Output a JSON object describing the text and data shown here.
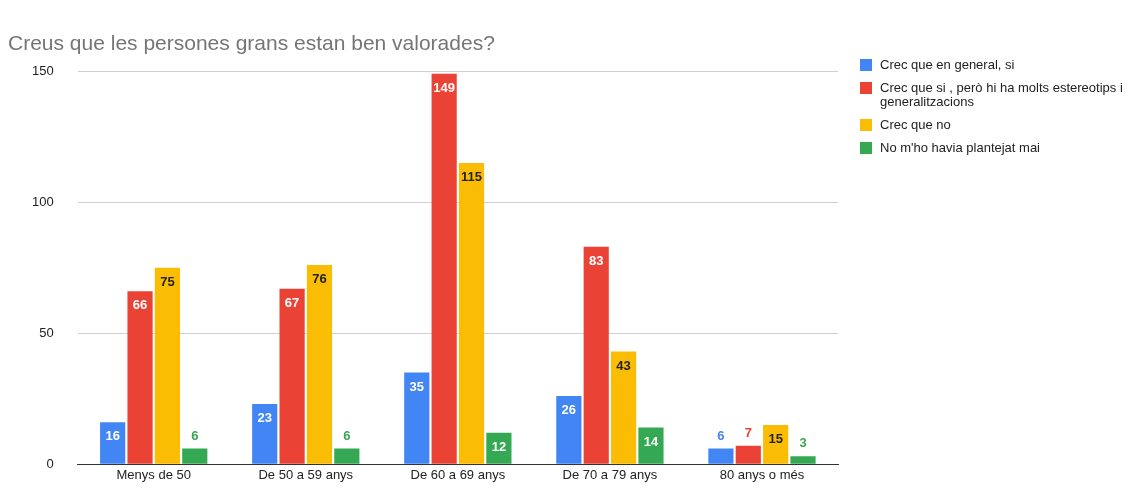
{
  "chart_data": {
    "type": "bar",
    "title": "Creus que les persones grans estan ben valorades?",
    "categories": [
      "Menys de 50",
      "De 50 a 59 anys",
      "De 60 a 69 anys",
      "De 70 a 79 anys",
      "80 anys o més"
    ],
    "series": [
      {
        "name": "Crec que en general, si",
        "color": "#4285f4",
        "values": [
          16,
          23,
          35,
          26,
          6
        ]
      },
      {
        "name": "Crec que si , però hi ha molts estereotips i generalitzacions",
        "color": "#ea4335",
        "values": [
          66,
          67,
          149,
          83,
          7
        ]
      },
      {
        "name": "Crec que no",
        "color": "#fbbc04",
        "values": [
          75,
          76,
          115,
          43,
          15
        ]
      },
      {
        "name": "No m'ho havia plantejat mai",
        "color": "#34a853",
        "values": [
          6,
          6,
          12,
          14,
          3
        ]
      }
    ],
    "ylim": [
      0,
      150
    ],
    "yticks": [
      0,
      50,
      100,
      150
    ],
    "grid": "y",
    "legend": "top right",
    "data_labels": true
  }
}
